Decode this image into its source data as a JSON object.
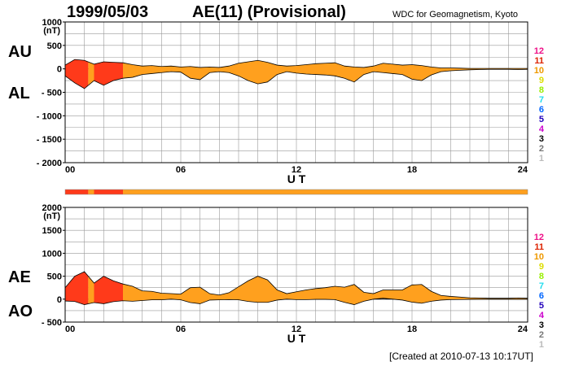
{
  "header": {
    "date": "1999/05/03",
    "title": "AE(11) (Provisional)",
    "source": "WDC for Geomagnetism, Kyoto"
  },
  "footer": {
    "created": "[Created at 2010-07-13 10:17UT]"
  },
  "legend": {
    "items": [
      {
        "label": "12",
        "color": "#ee1188"
      },
      {
        "label": "11",
        "color": "#dd2200"
      },
      {
        "label": "10",
        "color": "#ee9900"
      },
      {
        "label": "9",
        "color": "#dddd00"
      },
      {
        "label": "8",
        "color": "#99ee00"
      },
      {
        "label": "7",
        "color": "#22ddee"
      },
      {
        "label": "6",
        "color": "#0066ff"
      },
      {
        "label": "5",
        "color": "#2200bb"
      },
      {
        "label": "4",
        "color": "#cc00cc"
      },
      {
        "label": "3",
        "color": "#000000"
      },
      {
        "label": "2",
        "color": "#777777"
      },
      {
        "label": "1",
        "color": "#bbbbbb"
      }
    ]
  },
  "colors": {
    "fill10": "#ffa01e",
    "fill11": "#ff3a1a",
    "grid": "#999999"
  },
  "chart_data": [
    {
      "type": "area",
      "panel": "AU/AL",
      "series_labels": [
        "AU",
        "AL"
      ],
      "unit_label": "(nT)",
      "xlabel": "U T",
      "xlim": [
        0,
        24
      ],
      "ylim": [
        -2000,
        1000
      ],
      "xticks": [
        "00",
        "06",
        "12",
        "18",
        "24"
      ],
      "yticks": [
        "1000",
        "500",
        "0",
        "- 500",
        "- 1000",
        "- 1500",
        "- 2000"
      ],
      "x": [
        0,
        0.5,
        1,
        1.5,
        2,
        2.5,
        3,
        3.5,
        4,
        4.5,
        5,
        5.5,
        6,
        6.5,
        7,
        7.5,
        8,
        8.5,
        9,
        9.5,
        10,
        10.5,
        11,
        11.5,
        12,
        12.5,
        13,
        13.5,
        14,
        14.5,
        15,
        15.5,
        16,
        16.5,
        17,
        17.5,
        18,
        18.5,
        19,
        19.5,
        20,
        20.5,
        21,
        21.5,
        22,
        22.5,
        23,
        23.5,
        24
      ],
      "au": [
        80,
        200,
        180,
        100,
        150,
        140,
        130,
        90,
        60,
        70,
        50,
        60,
        40,
        50,
        30,
        40,
        30,
        60,
        120,
        150,
        180,
        140,
        80,
        60,
        70,
        90,
        110,
        120,
        130,
        60,
        40,
        30,
        60,
        120,
        100,
        80,
        90,
        70,
        40,
        20,
        20,
        15,
        10,
        10,
        10,
        10,
        10,
        10,
        10
      ],
      "al": [
        -150,
        -300,
        -420,
        -250,
        -350,
        -250,
        -200,
        -180,
        -120,
        -100,
        -80,
        -60,
        -70,
        -200,
        -230,
        -80,
        -60,
        -80,
        -150,
        -250,
        -320,
        -280,
        -120,
        -60,
        -90,
        -110,
        -120,
        -130,
        -150,
        -200,
        -280,
        -120,
        -60,
        -80,
        -100,
        -120,
        -220,
        -250,
        -130,
        -60,
        -40,
        -30,
        -20,
        -15,
        -10,
        -10,
        -10,
        -15,
        -10
      ],
      "activity": [
        {
          "from": 0,
          "to": 1.2,
          "level": 11
        },
        {
          "from": 1.2,
          "to": 1.5,
          "level": 10
        },
        {
          "from": 1.5,
          "to": 3,
          "level": 11
        },
        {
          "from": 3,
          "to": 24,
          "level": 10
        }
      ]
    },
    {
      "type": "area",
      "panel": "AE/AO",
      "series_labels": [
        "AE",
        "AO"
      ],
      "unit_label": "(nT)",
      "xlabel": "U T",
      "xlim": [
        0,
        24
      ],
      "ylim": [
        -500,
        2000
      ],
      "xticks": [
        "00",
        "06",
        "12",
        "18",
        "24"
      ],
      "yticks": [
        "2000",
        "1500",
        "1000",
        "500",
        "0",
        "- 500"
      ],
      "x": [
        0,
        0.5,
        1,
        1.5,
        2,
        2.5,
        3,
        3.5,
        4,
        4.5,
        5,
        5.5,
        6,
        6.5,
        7,
        7.5,
        8,
        8.5,
        9,
        9.5,
        10,
        10.5,
        11,
        11.5,
        12,
        12.5,
        13,
        13.5,
        14,
        14.5,
        15,
        15.5,
        16,
        16.5,
        17,
        17.5,
        18,
        18.5,
        19,
        19.5,
        20,
        20.5,
        21,
        21.5,
        22,
        22.5,
        23,
        23.5,
        24
      ],
      "ae": [
        250,
        500,
        600,
        350,
        500,
        400,
        330,
        280,
        180,
        170,
        130,
        120,
        110,
        250,
        260,
        120,
        90,
        140,
        270,
        400,
        500,
        420,
        200,
        120,
        160,
        200,
        230,
        250,
        280,
        260,
        320,
        150,
        120,
        200,
        200,
        200,
        310,
        320,
        170,
        80,
        60,
        45,
        30,
        25,
        20,
        20,
        20,
        25,
        20
      ],
      "ao": [
        -40,
        -50,
        -120,
        -75,
        -100,
        -55,
        -35,
        -45,
        -30,
        -15,
        -15,
        0,
        -15,
        -75,
        -100,
        -20,
        -15,
        -10,
        -15,
        -50,
        -70,
        -70,
        -20,
        0,
        -10,
        -10,
        -5,
        -5,
        -10,
        -70,
        -120,
        -45,
        0,
        20,
        0,
        -20,
        -65,
        -90,
        -45,
        -20,
        -10,
        -8,
        -5,
        -3,
        0,
        0,
        0,
        -3,
        0
      ]
    }
  ]
}
